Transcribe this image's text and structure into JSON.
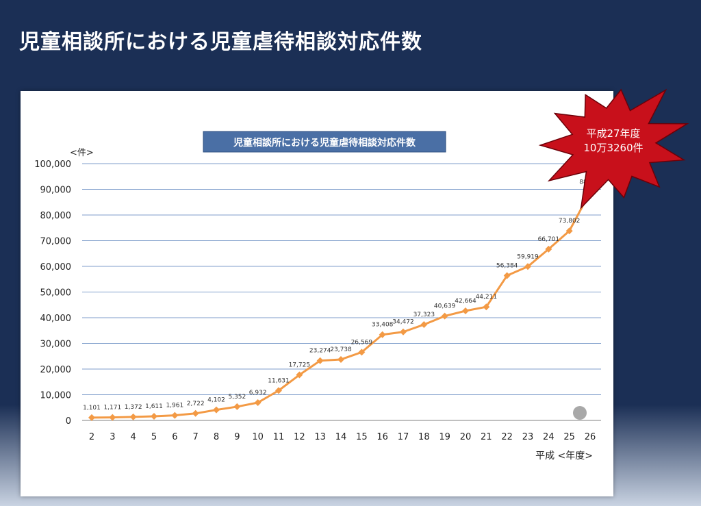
{
  "slide": {
    "title": "児童相談所における児童虐待相談対応件数"
  },
  "callout": {
    "line1": "平成27年度",
    "line2": "10万3260件",
    "color": "#c8101b"
  },
  "chart_data": {
    "type": "line",
    "title": "児童相談所における児童虐待相談対応件数",
    "ylabel": "<件>",
    "xlabel": "平成 <年度>",
    "ylim": [
      0,
      100000
    ],
    "y_ticks": [
      "0",
      "10,000",
      "20,000",
      "30,000",
      "40,000",
      "50,000",
      "60,000",
      "70,000",
      "80,000",
      "90,000",
      "100,000"
    ],
    "grid": true,
    "line_color": "#f39a45",
    "categories": [
      "2",
      "3",
      "4",
      "5",
      "6",
      "7",
      "8",
      "9",
      "10",
      "11",
      "12",
      "13",
      "14",
      "15",
      "16",
      "17",
      "18",
      "19",
      "20",
      "21",
      "22",
      "23",
      "24",
      "25",
      "26"
    ],
    "values": [
      1101,
      1171,
      1372,
      1611,
      1961,
      2722,
      4102,
      5352,
      6932,
      11631,
      17725,
      23274,
      23738,
      26569,
      33408,
      34472,
      37323,
      40639,
      42664,
      44211,
      56384,
      59919,
      66701,
      73802,
      88931
    ],
    "value_labels": [
      "1,101",
      "1,171",
      "1,372",
      "1,611",
      "1,961",
      "2,722",
      "4,102",
      "5,352",
      "6,932",
      "11,631",
      "17,725",
      "23,274",
      "23,738",
      "26,569",
      "33,408",
      "34,472",
      "37,323",
      "40,639",
      "42,664",
      "44,211",
      "56,384",
      "59,919",
      "66,701",
      "73,802",
      "88,931"
    ]
  }
}
